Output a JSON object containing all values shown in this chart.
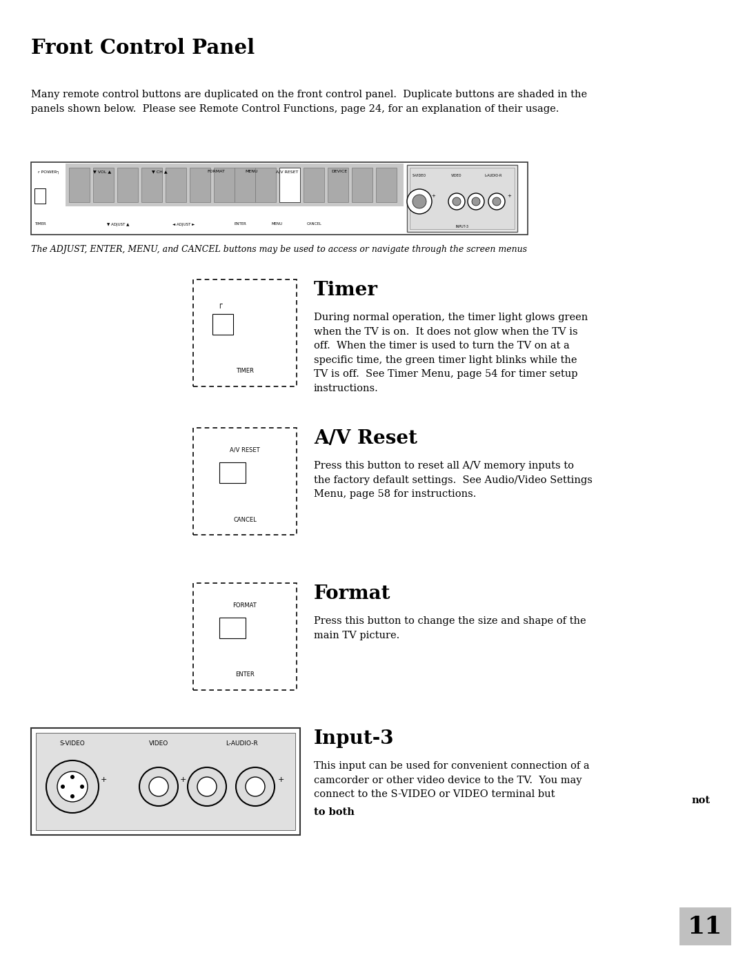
{
  "title": "Front Control Panel",
  "intro_text": "Many remote control buttons are duplicated on the front control panel.  Duplicate buttons are shaded in the\npanels shown below.  Please see Remote Control Functions, page 24, for an explanation of their usage.",
  "caption": "The ADJUST, ENTER, MENU, and CANCEL buttons may be used to access or navigate through the screen menus",
  "bg_color": "#ffffff",
  "page_number": "11",
  "timer_title": "Timer",
  "timer_text": "During normal operation, the timer light glows green\nwhen the TV is on.  It does not glow when the TV is\noff.  When the timer is used to turn the TV on at a\nspecific time, the green timer light blinks while the\nTV is off.  See Timer Menu, page 54 for timer setup\ninstructions.",
  "avr_title": "A/V Reset",
  "avr_text": "Press this button to reset all A/V memory inputs to\nthe factory default settings.  See Audio/Video Settings\nMenu, page 58 for instructions.",
  "format_title": "Format",
  "format_text": "Press this button to change the size and shape of the\nmain TV picture.",
  "input3_title": "Input-3",
  "input3_text_1": "This input can be used for convenient connection of a\ncamcorder or other video device to the TV.  You may\nconnect to the S-VIDEO or VIDEO terminal but ",
  "input3_text_bold1": "not",
  "input3_text_2": "\nto both",
  "input3_text_bold2": "to both"
}
